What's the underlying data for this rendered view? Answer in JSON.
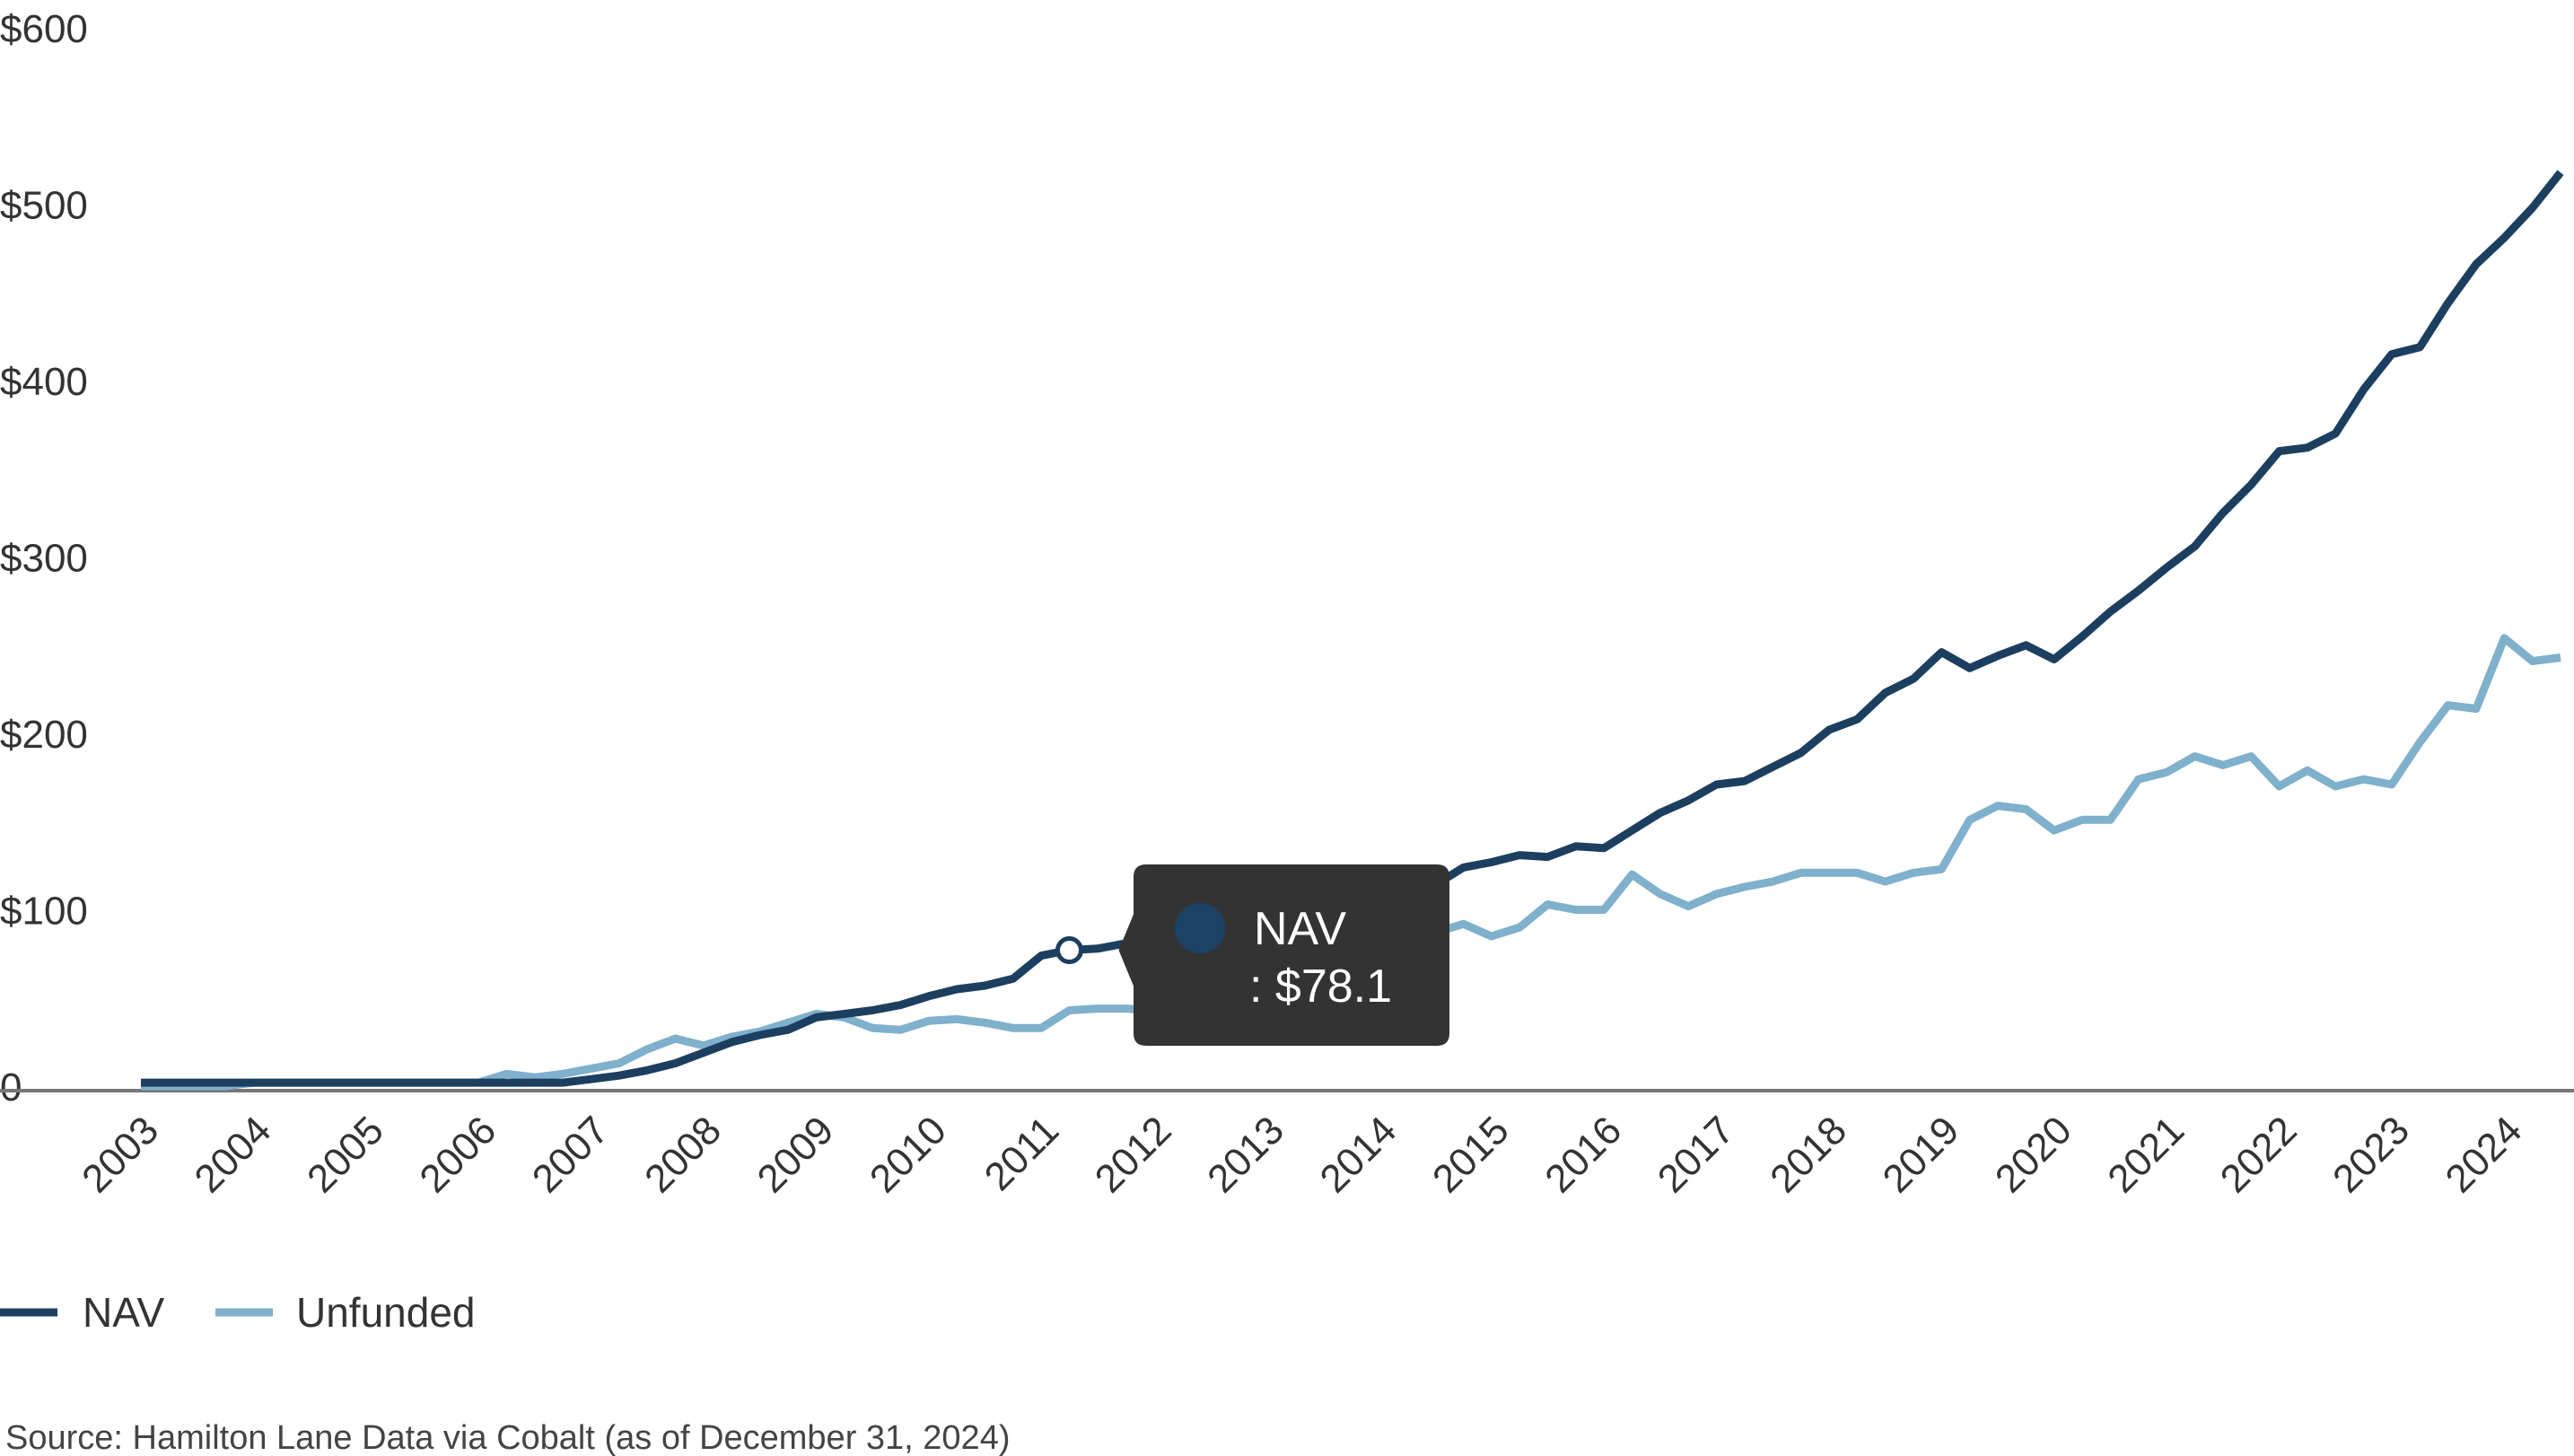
{
  "chart_data": {
    "type": "line",
    "title": "",
    "xlabel": "",
    "ylabel": "",
    "ylim": [
      0,
      600
    ],
    "xlim": [
      2003,
      2024.5
    ],
    "y_ticks": [
      "0",
      "$100",
      "$200",
      "$300",
      "$400",
      "$500",
      "$600"
    ],
    "y_tick_values": [
      0,
      100,
      200,
      300,
      400,
      500,
      600
    ],
    "x_ticks": [
      "2003",
      "2004",
      "2005",
      "2006",
      "2007",
      "2008",
      "2009",
      "2010",
      "2011",
      "2012",
      "2013",
      "2014",
      "2015",
      "2016",
      "2017",
      "2018",
      "2019",
      "2020",
      "2021",
      "2022",
      "2023",
      "2024"
    ],
    "x_start": 2003,
    "x_step": 0.25,
    "grid": false,
    "legend_position": "bottom-left",
    "series": [
      {
        "name": "NAV",
        "color": "#1c3f60",
        "values": [
          3,
          3,
          3,
          3,
          3,
          3,
          3,
          3,
          3,
          3,
          3,
          3,
          3,
          3,
          3,
          3,
          5,
          7,
          10,
          14,
          20,
          26,
          30,
          33,
          40,
          42,
          44,
          47,
          52,
          56,
          58,
          62,
          75,
          78.1,
          79,
          82,
          85,
          88,
          91,
          94,
          96,
          99,
          102,
          104,
          107,
          110,
          115,
          125,
          128,
          132,
          131,
          137,
          136,
          146,
          156,
          163,
          172,
          174,
          182,
          190,
          203,
          209,
          224,
          232,
          247,
          238,
          245,
          251,
          243,
          256,
          270,
          282,
          295,
          307,
          326,
          342,
          361,
          363,
          371,
          396,
          416,
          420,
          445,
          467,
          482,
          499,
          519
        ]
      },
      {
        "name": "Unfunded",
        "color": "#7fb0cc",
        "values": [
          1,
          1,
          1,
          1,
          3,
          3,
          3,
          3,
          3,
          3,
          3,
          3,
          3,
          8,
          6,
          8,
          11,
          14,
          22,
          28,
          24,
          29,
          32,
          37,
          42,
          40,
          34,
          33,
          38,
          39,
          37,
          34,
          34,
          44,
          45,
          45,
          44,
          45,
          50,
          55,
          62,
          68,
          72,
          76,
          80,
          84,
          88,
          93,
          86,
          91,
          104,
          101,
          101,
          121,
          110,
          103,
          110,
          114,
          117,
          122,
          122,
          122,
          117,
          122,
          124,
          152,
          160,
          158,
          146,
          152,
          152,
          175,
          179,
          188,
          183,
          188,
          171,
          180,
          171,
          175,
          172,
          196,
          217,
          215,
          255,
          242,
          244
        ]
      }
    ],
    "tooltip": {
      "series": "NAV",
      "label": "NAV",
      "value_text": ": $78.1",
      "index": 33
    },
    "source": "Source: Hamilton Lane Data via Cobalt (as of December 31, 2024)"
  }
}
